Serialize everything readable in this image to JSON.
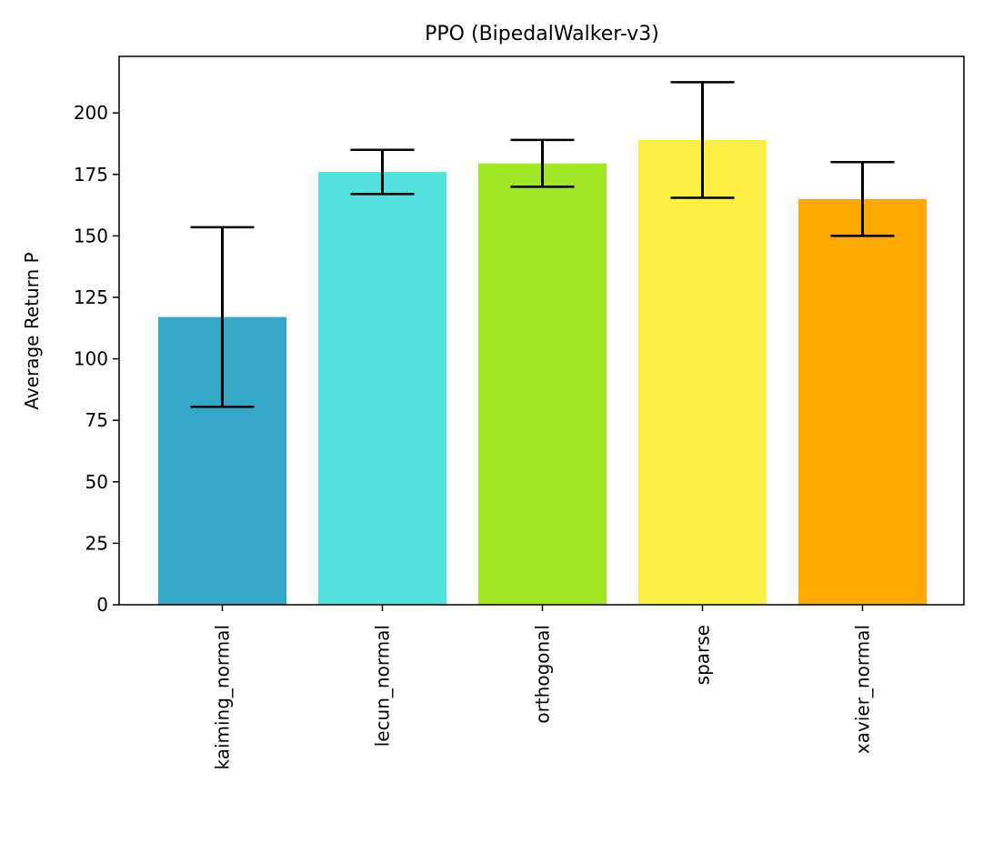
{
  "chart_data": {
    "type": "bar",
    "title": "PPO (BipedalWalker-v3)",
    "xlabel": "",
    "ylabel": "Average Return P",
    "categories": [
      "kaiming_normal",
      "lecun_normal",
      "orthogonal",
      "sparse",
      "xavier_normal"
    ],
    "values": [
      117,
      176,
      179.5,
      189,
      165
    ],
    "error": [
      36.5,
      9,
      9.5,
      23.5,
      15
    ],
    "colors": [
      "#35a7c6",
      "#53e3de",
      "#a2e628",
      "#fcef44",
      "#ffaa00"
    ],
    "ylim": [
      0,
      223
    ],
    "yticks": [
      0,
      25,
      50,
      75,
      100,
      125,
      150,
      175,
      200
    ],
    "grid": false,
    "legend": "none"
  }
}
